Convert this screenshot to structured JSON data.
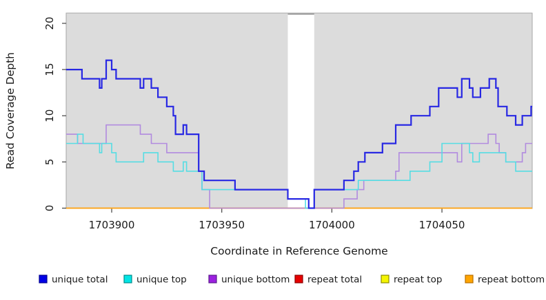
{
  "chart_data": {
    "type": "line",
    "subtype": "step-coverage-plot",
    "title": "",
    "xlabel": "Coordinate in Reference Genome",
    "ylabel": "Read Coverage Depth",
    "xlim": [
      1703879.33,
      1704091.0
    ],
    "ylim": [
      0,
      21.2
    ],
    "xticks": [
      1703900,
      1703950,
      1704000,
      1704050
    ],
    "xtick_labels": [
      "1703900",
      "1703950",
      "1704000",
      "1704050"
    ],
    "yticks": [
      0,
      5,
      10,
      15,
      20
    ],
    "ytick_labels": [
      "0",
      "5",
      "10",
      "15",
      "20"
    ],
    "grid": false,
    "plot_background": "#dcdcdc",
    "frame_color": "#a6a6a6",
    "tick_color": "#404040",
    "highlight_band": {
      "x0": 1703980,
      "x1": 1703992,
      "fill": "#ffffff",
      "top_line_color": "#8c8c8c"
    },
    "series": [
      {
        "name": "repeat total",
        "color": "#cd3333",
        "width": 1.6,
        "points": [
          [
            1703879.33,
            0
          ]
        ]
      },
      {
        "name": "repeat top",
        "color": "#f0f000",
        "width": 1.6,
        "points": [
          [
            1703879.33,
            0
          ]
        ]
      },
      {
        "name": "repeat bottom",
        "color": "#ffa520",
        "width": 1.8,
        "points": [
          [
            1703879.33,
            0
          ]
        ]
      },
      {
        "name": "unique bottom",
        "color": "#b18adf",
        "width": 1.6,
        "points": [
          [
            1703879.33,
            8
          ],
          [
            1703884.5,
            7
          ],
          [
            1703897.5,
            9
          ],
          [
            1703913,
            8
          ],
          [
            1703918,
            7
          ],
          [
            1703925,
            6
          ],
          [
            1703939.5,
            4
          ],
          [
            1703941,
            2
          ],
          [
            1703944.5,
            0
          ],
          [
            1704005.5,
            1
          ],
          [
            1704011.5,
            2
          ],
          [
            1704014.5,
            3
          ],
          [
            1704029,
            4
          ],
          [
            1704030.5,
            6
          ],
          [
            1704057,
            5
          ],
          [
            1704059,
            7
          ],
          [
            1704071,
            8
          ],
          [
            1704074.5,
            7
          ],
          [
            1704076,
            6
          ],
          [
            1704079,
            5
          ],
          [
            1704086.5,
            6
          ],
          [
            1704088,
            7
          ]
        ]
      },
      {
        "name": "unique top",
        "color": "#55dde3",
        "width": 1.6,
        "points": [
          [
            1703879.33,
            7
          ],
          [
            1703884.5,
            8
          ],
          [
            1703887,
            7
          ],
          [
            1703894.5,
            6
          ],
          [
            1703895.5,
            7
          ],
          [
            1703900,
            6
          ],
          [
            1703902,
            5
          ],
          [
            1703914.5,
            6
          ],
          [
            1703921,
            5
          ],
          [
            1703928,
            4
          ],
          [
            1703932.5,
            5
          ],
          [
            1703934,
            4
          ],
          [
            1703941,
            2
          ],
          [
            1703980,
            1
          ],
          [
            1703988,
            0
          ],
          [
            1703992,
            2
          ],
          [
            1704012,
            3
          ],
          [
            1704035.5,
            4
          ],
          [
            1704044.5,
            5
          ],
          [
            1704050,
            7
          ],
          [
            1704062.5,
            6
          ],
          [
            1704064,
            5
          ],
          [
            1704067,
            6
          ],
          [
            1704079,
            5
          ],
          [
            1704083.5,
            4
          ]
        ]
      },
      {
        "name": "unique total",
        "color": "#2727e3",
        "width": 2.2,
        "points": [
          [
            1703879.33,
            15
          ],
          [
            1703886.5,
            14
          ],
          [
            1703894.5,
            13
          ],
          [
            1703895.5,
            14
          ],
          [
            1703897.5,
            16
          ],
          [
            1703900,
            15
          ],
          [
            1703902,
            14
          ],
          [
            1703913,
            13
          ],
          [
            1703914.5,
            14
          ],
          [
            1703918,
            13
          ],
          [
            1703921,
            12
          ],
          [
            1703925,
            11
          ],
          [
            1703928,
            10
          ],
          [
            1703929,
            8
          ],
          [
            1703932.5,
            9
          ],
          [
            1703934,
            8
          ],
          [
            1703939.5,
            4
          ],
          [
            1703942,
            3
          ],
          [
            1703956,
            2
          ],
          [
            1703980,
            1
          ],
          [
            1703989.5,
            0
          ],
          [
            1703992,
            2
          ],
          [
            1704005.5,
            3
          ],
          [
            1704010,
            4
          ],
          [
            1704012,
            5
          ],
          [
            1704015,
            6
          ],
          [
            1704023,
            7
          ],
          [
            1704029,
            9
          ],
          [
            1704036,
            10
          ],
          [
            1704044.5,
            11
          ],
          [
            1704048.5,
            13
          ],
          [
            1704057,
            12
          ],
          [
            1704059,
            14
          ],
          [
            1704062.5,
            13
          ],
          [
            1704064,
            12
          ],
          [
            1704067.5,
            13
          ],
          [
            1704071.5,
            14
          ],
          [
            1704074.5,
            13
          ],
          [
            1704075.5,
            11
          ],
          [
            1704079.5,
            10
          ],
          [
            1704083.5,
            9
          ],
          [
            1704086.5,
            10
          ],
          [
            1704090.5,
            11
          ]
        ]
      }
    ],
    "legend": [
      {
        "label": "unique total",
        "fill": "#0000e6",
        "border": "#000090"
      },
      {
        "label": "unique top",
        "fill": "#00e5e5",
        "border": "#008b8b"
      },
      {
        "label": "unique bottom",
        "fill": "#9c20e0",
        "border": "#5a1a8b"
      },
      {
        "label": "repeat total",
        "fill": "#e60000",
        "border": "#8b0000"
      },
      {
        "label": "repeat top",
        "fill": "#f5f500",
        "border": "#8b8b00"
      },
      {
        "label": "repeat bottom",
        "fill": "#ffa500",
        "border": "#b86e00"
      }
    ],
    "legend_position": "bottom"
  }
}
